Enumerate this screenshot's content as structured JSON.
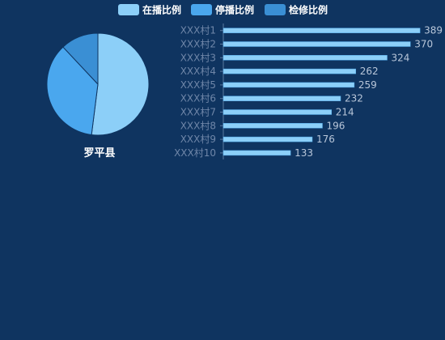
{
  "colors": {
    "background": "#0f3460",
    "bar": "#8ccff8",
    "bar_edge": "#4fa8e8",
    "axis": "#5a7aa0",
    "slice_online": "#8ccff8",
    "slice_stopped": "#4aa7ee",
    "slice_repair": "#3a8fd4"
  },
  "chart_data": [
    {
      "type": "pie",
      "label": "罗平县",
      "legend": [
        "在播比例",
        "停播比例",
        "检修比例"
      ],
      "legend_placement": "top-center",
      "slices": [
        {
          "name": "在播比例",
          "value": 52
        },
        {
          "name": "停播比例",
          "value": 36
        },
        {
          "name": "检修比例",
          "value": 12
        }
      ]
    },
    {
      "type": "bar",
      "orientation": "horizontal",
      "categories": [
        "XXX村1",
        "XXX村2",
        "XXX村3",
        "XXX村4",
        "XXX村5",
        "XXX村6",
        "XXX村7",
        "XXX村8",
        "XXX村9",
        "XXX村10"
      ],
      "values": [
        389,
        370,
        324,
        262,
        259,
        232,
        214,
        196,
        176,
        133
      ],
      "xlim": [
        0,
        400
      ],
      "grid": false
    }
  ]
}
